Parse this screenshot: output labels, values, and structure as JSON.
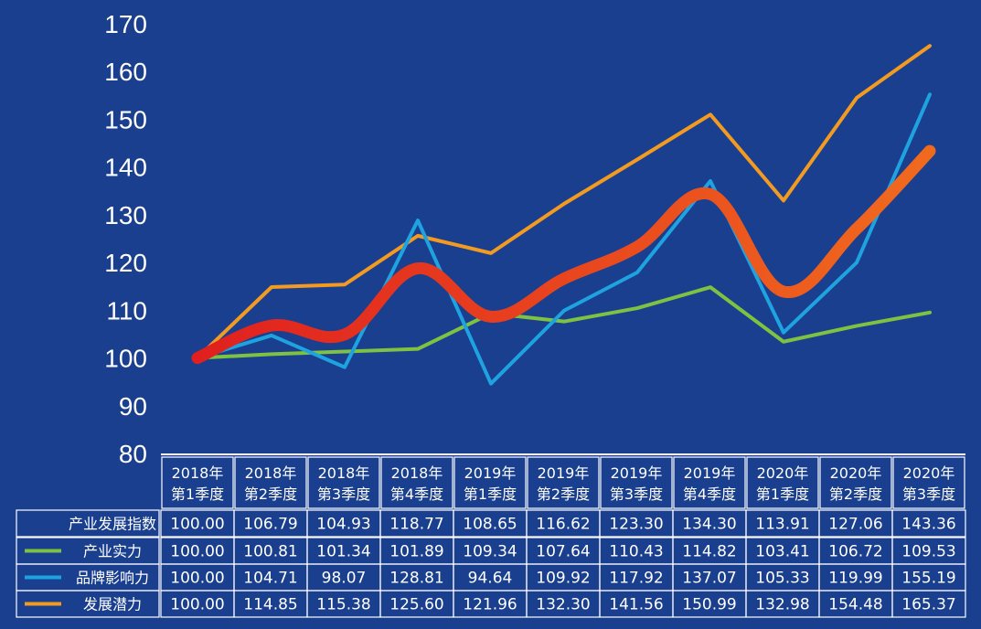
{
  "chart_data": {
    "type": "line",
    "ylim": [
      80,
      170
    ],
    "yticks": [
      170,
      160,
      150,
      140,
      130,
      120,
      110,
      100,
      90,
      80
    ],
    "categories": [
      [
        "2018年",
        "第1季度"
      ],
      [
        "2018年",
        "第2季度"
      ],
      [
        "2018年",
        "第3季度"
      ],
      [
        "2018年",
        "第4季度"
      ],
      [
        "2019年",
        "第1季度"
      ],
      [
        "2019年",
        "第2季度"
      ],
      [
        "2019年",
        "第3季度"
      ],
      [
        "2019年",
        "第4季度"
      ],
      [
        "2020年",
        "第1季度"
      ],
      [
        "2020年",
        "第2季度"
      ],
      [
        "2020年",
        "第3季度"
      ]
    ],
    "series": [
      {
        "key": "index",
        "name": "产业发展指数",
        "color": "#e8351f",
        "smooth": true,
        "values": [
          100.0,
          106.79,
          104.93,
          118.77,
          108.65,
          116.62,
          123.3,
          134.3,
          113.91,
          127.06,
          143.36
        ],
        "labels": [
          "100.00",
          "106.79",
          "104.93",
          "118.77",
          "108.65",
          "116.62",
          "123.30",
          "134.30",
          "113.91",
          "127.06",
          "143.36"
        ]
      },
      {
        "key": "strength",
        "name": "产业实力",
        "color": "#7ec242",
        "smooth": false,
        "values": [
          100.0,
          100.81,
          101.34,
          101.89,
          109.34,
          107.64,
          110.43,
          114.82,
          103.41,
          106.72,
          109.53
        ],
        "labels": [
          "100.00",
          "100.81",
          "101.34",
          "101.89",
          "109.34",
          "107.64",
          "110.43",
          "114.82",
          "103.41",
          "106.72",
          "109.53"
        ]
      },
      {
        "key": "brand",
        "name": "品牌影响力",
        "color": "#1fa3e0",
        "smooth": false,
        "values": [
          100.0,
          104.71,
          98.07,
          128.81,
          94.64,
          109.92,
          117.92,
          137.07,
          105.33,
          119.99,
          155.19
        ],
        "labels": [
          "100.00",
          "104.71",
          "98.07",
          "128.81",
          "94.64",
          "109.92",
          "117.92",
          "137.07",
          "105.33",
          "119.99",
          "155.19"
        ]
      },
      {
        "key": "potential",
        "name": "发展潜力",
        "color": "#f39a21",
        "smooth": false,
        "values": [
          100.0,
          114.85,
          115.38,
          125.6,
          121.96,
          132.3,
          141.56,
          150.99,
          132.98,
          154.48,
          165.37
        ],
        "labels": [
          "100.00",
          "114.85",
          "115.38",
          "125.60",
          "121.96",
          "132.30",
          "141.56",
          "150.99",
          "132.98",
          "154.48",
          "165.37"
        ]
      }
    ]
  }
}
